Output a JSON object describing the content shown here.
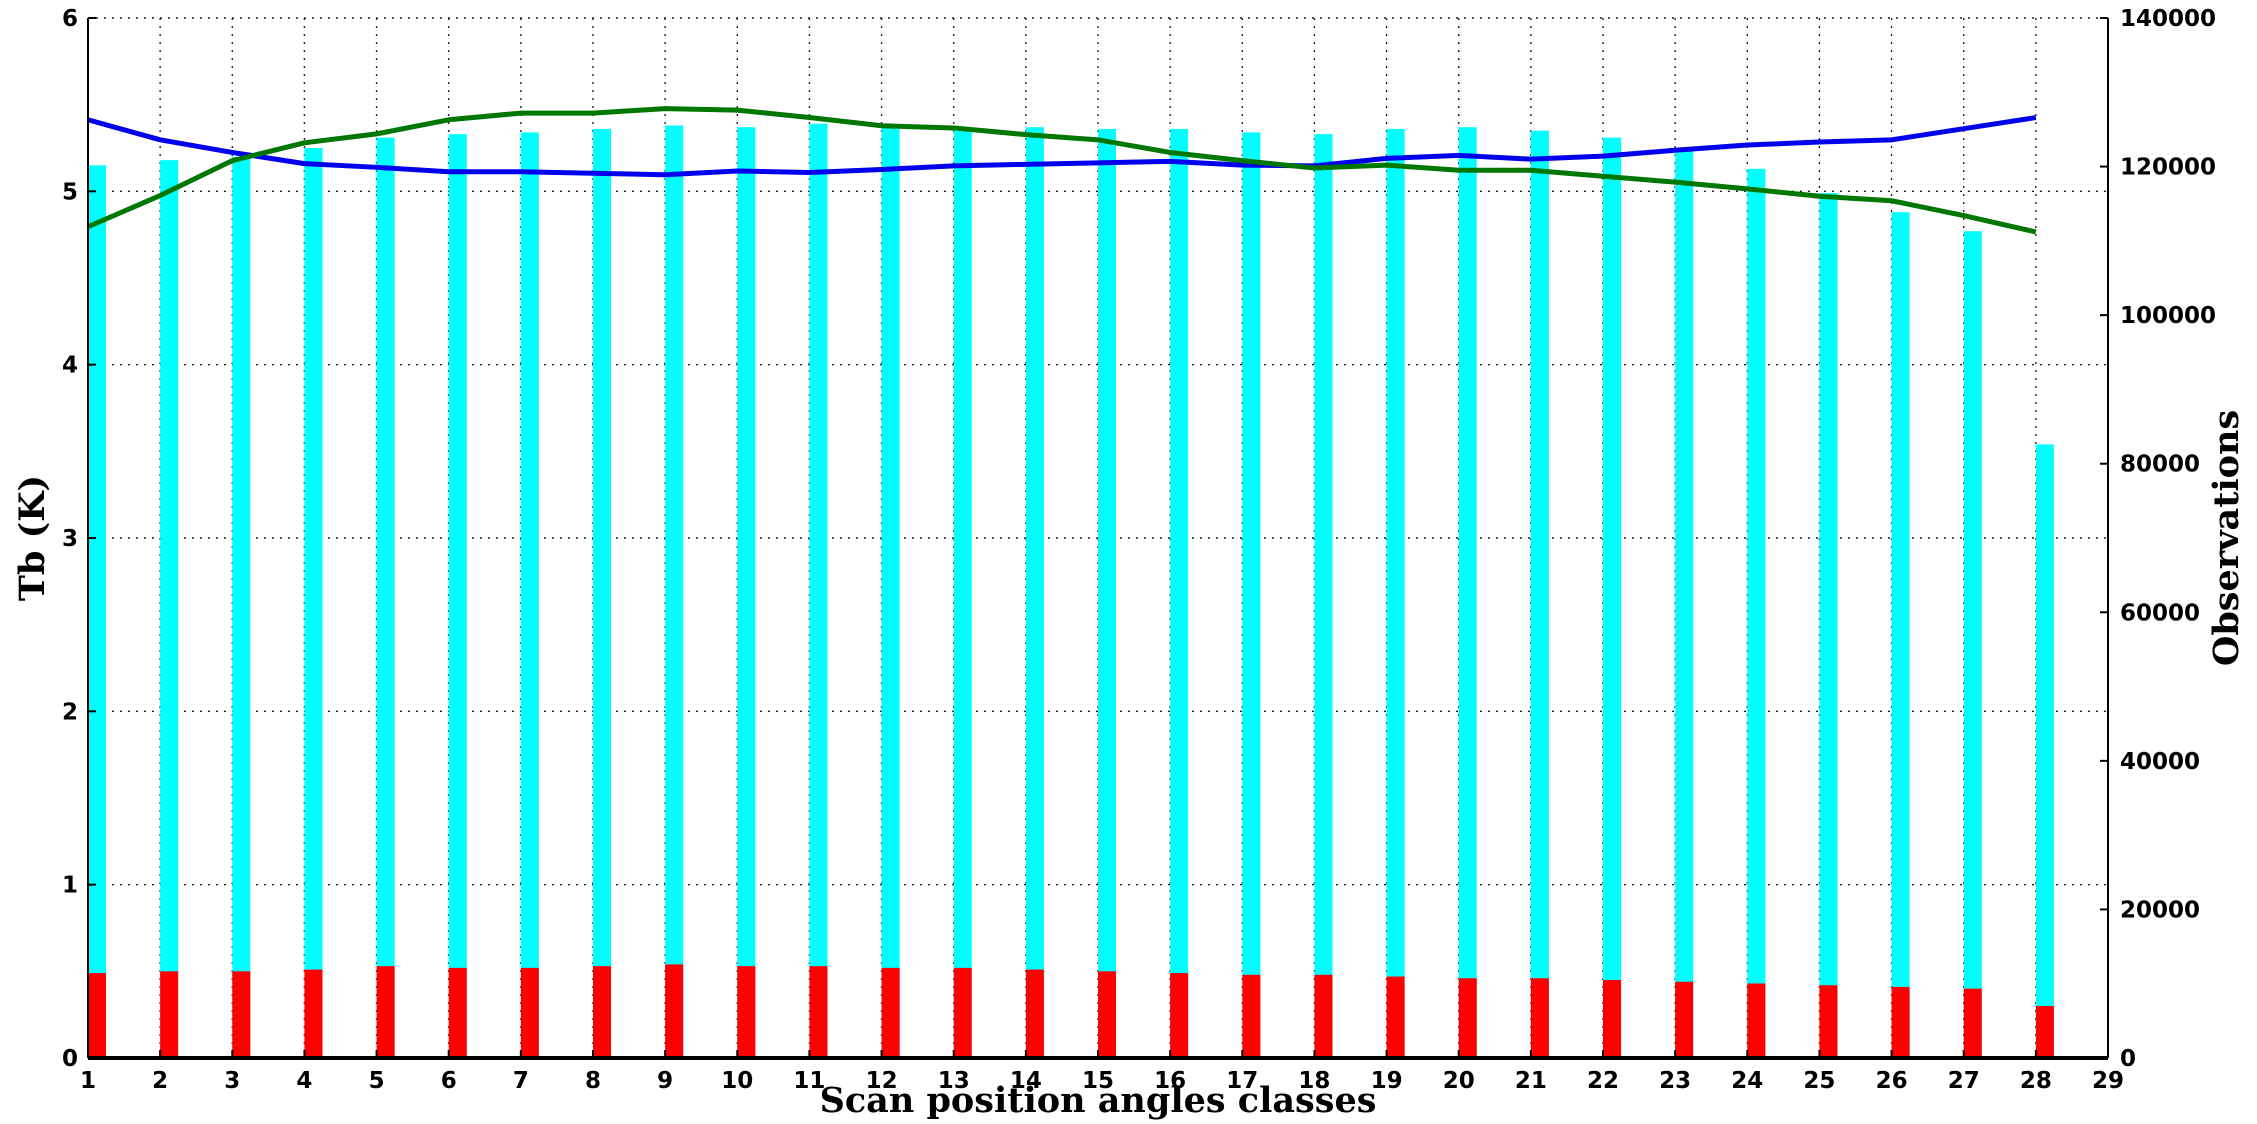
{
  "chart_data": {
    "type": "bar",
    "xlabel": "Scan position angles classes",
    "ylabel": "Tb (K)",
    "y2label": "Observations",
    "xlim": [
      1,
      29
    ],
    "ylim": [
      0,
      6
    ],
    "y2lim": [
      0,
      140000
    ],
    "x_ticks": [
      "1",
      "2",
      "3",
      "4",
      "5",
      "6",
      "7",
      "8",
      "9",
      "10",
      "11",
      "12",
      "13",
      "14",
      "15",
      "16",
      "17",
      "18",
      "19",
      "20",
      "21",
      "22",
      "23",
      "24",
      "25",
      "26",
      "27",
      "28",
      "29"
    ],
    "y_ticks": [
      "0",
      "1",
      "2",
      "3",
      "4",
      "5",
      "6"
    ],
    "y2_ticks": [
      "0",
      "20000",
      "40000",
      "60000",
      "80000",
      "100000",
      "120000",
      "140000"
    ],
    "grid": true,
    "bar_width": 0.25,
    "bar_series": [
      {
        "axis": "y",
        "color": "#00ffff",
        "x": [
          1,
          2,
          3,
          4,
          5,
          6,
          7,
          8,
          9,
          10,
          11,
          12,
          13,
          14,
          15,
          16,
          17,
          18,
          19,
          20,
          21,
          22,
          23,
          24,
          25,
          26,
          27,
          28
        ],
        "values": [
          5.15,
          5.18,
          5.2,
          5.25,
          5.31,
          5.33,
          5.34,
          5.36,
          5.38,
          5.37,
          5.39,
          5.38,
          5.37,
          5.37,
          5.36,
          5.36,
          5.34,
          5.33,
          5.36,
          5.37,
          5.35,
          5.31,
          5.24,
          5.13,
          4.99,
          4.88,
          4.77,
          3.54
        ]
      },
      {
        "axis": "y",
        "color": "#ff0000",
        "x": [
          1,
          2,
          3,
          4,
          5,
          6,
          7,
          8,
          9,
          10,
          11,
          12,
          13,
          14,
          15,
          16,
          17,
          18,
          19,
          20,
          21,
          22,
          23,
          24,
          25,
          26,
          27,
          28
        ],
        "values": [
          0.49,
          0.5,
          0.5,
          0.51,
          0.53,
          0.52,
          0.52,
          0.53,
          0.54,
          0.53,
          0.53,
          0.52,
          0.52,
          0.51,
          0.5,
          0.49,
          0.48,
          0.48,
          0.47,
          0.46,
          0.46,
          0.45,
          0.44,
          0.43,
          0.42,
          0.41,
          0.4,
          0.3
        ]
      }
    ],
    "line_series": [
      {
        "axis": "y2",
        "color": "#0000ee",
        "x": [
          1,
          2,
          3,
          4,
          5,
          6,
          7,
          8,
          9,
          10,
          11,
          12,
          13,
          14,
          15,
          16,
          17,
          18,
          19,
          20,
          21,
          22,
          23,
          24,
          25,
          26,
          27,
          28
        ],
        "values": [
          126300,
          123600,
          121900,
          120400,
          119900,
          119300,
          119300,
          119100,
          118900,
          119400,
          119200,
          119600,
          120100,
          120300,
          120500,
          120700,
          120200,
          120100,
          121100,
          121500,
          121000,
          121400,
          122200,
          122900,
          123300,
          123600,
          125100,
          126600
        ]
      },
      {
        "axis": "y2",
        "color": "#007700",
        "x": [
          1,
          2,
          3,
          4,
          5,
          6,
          7,
          8,
          9,
          10,
          11,
          12,
          13,
          14,
          15,
          16,
          17,
          18,
          19,
          20,
          21,
          22,
          23,
          24,
          25,
          26,
          27,
          28
        ],
        "values": [
          111900,
          116100,
          120800,
          123200,
          124400,
          126300,
          127200,
          127200,
          127800,
          127600,
          126600,
          125500,
          125200,
          124300,
          123600,
          121900,
          120800,
          119800,
          120200,
          119500,
          119500,
          118700,
          117900,
          117000,
          116000,
          115400,
          113400,
          111200
        ]
      }
    ]
  }
}
